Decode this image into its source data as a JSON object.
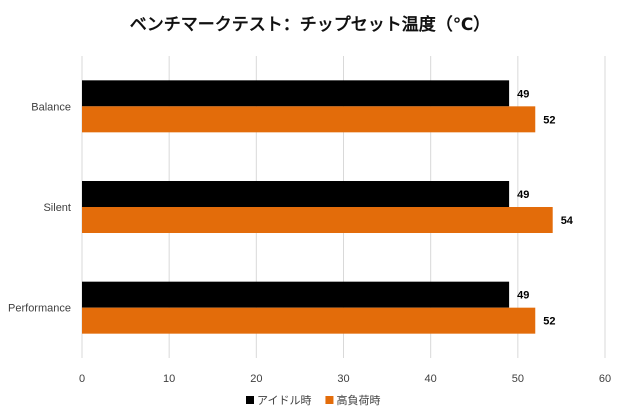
{
  "chart_data": {
    "type": "bar",
    "orientation": "horizontal",
    "title": "ベンチマークテスト：チップセット温度（℃）",
    "categories": [
      "Balance",
      "Silent",
      "Performance"
    ],
    "series": [
      {
        "name": "アイドル時",
        "color": "#000000",
        "values": [
          49,
          49,
          49
        ]
      },
      {
        "name": "高負荷時",
        "color": "#E36C0A",
        "values": [
          52,
          54,
          52
        ]
      }
    ],
    "xlim": [
      0,
      60
    ],
    "xticks": [
      0,
      10,
      20,
      30,
      40,
      50,
      60
    ],
    "grid": true,
    "legend": "bottom",
    "data_labels": true
  }
}
